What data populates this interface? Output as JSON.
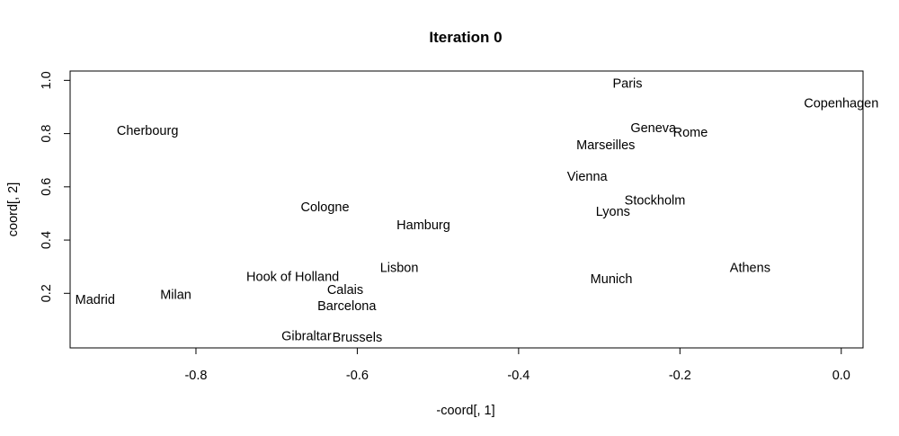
{
  "chart_data": {
    "type": "scatter",
    "title": "Iteration 0",
    "xlabel": "-coord[, 1]",
    "ylabel": "coord[, 2]",
    "xlim": [
      -0.956,
      0.027
    ],
    "ylim": [
      -0.005,
      1.035
    ],
    "xticks": [
      -0.8,
      -0.6,
      -0.4,
      -0.2,
      0.0
    ],
    "xtick_labels": [
      "-0.8",
      "-0.6",
      "-0.4",
      "-0.2",
      "0.0"
    ],
    "yticks": [
      0.2,
      0.4,
      0.6,
      0.8,
      1.0
    ],
    "ytick_labels": [
      "0.2",
      "0.4",
      "0.6",
      "0.8",
      "1.0"
    ],
    "points": [
      {
        "label": "Paris",
        "x": -0.265,
        "y": 0.99
      },
      {
        "label": "Copenhagen",
        "x": 0.0,
        "y": 0.915
      },
      {
        "label": "Cherbourg",
        "x": -0.86,
        "y": 0.812
      },
      {
        "label": "Geneva",
        "x": -0.233,
        "y": 0.823
      },
      {
        "label": "Rome",
        "x": -0.187,
        "y": 0.806
      },
      {
        "label": "Marseilles",
        "x": -0.292,
        "y": 0.758
      },
      {
        "label": "Vienna",
        "x": -0.315,
        "y": 0.64
      },
      {
        "label": "Stockholm",
        "x": -0.231,
        "y": 0.55
      },
      {
        "label": "Lyons",
        "x": -0.283,
        "y": 0.508
      },
      {
        "label": "Cologne",
        "x": -0.64,
        "y": 0.525
      },
      {
        "label": "Hamburg",
        "x": -0.518,
        "y": 0.458
      },
      {
        "label": "Lisbon",
        "x": -0.548,
        "y": 0.298
      },
      {
        "label": "Munich",
        "x": -0.285,
        "y": 0.255
      },
      {
        "label": "Athens",
        "x": -0.113,
        "y": 0.298
      },
      {
        "label": "Hook of Holland",
        "x": -0.68,
        "y": 0.263
      },
      {
        "label": "Madrid",
        "x": -0.925,
        "y": 0.178
      },
      {
        "label": "Milan",
        "x": -0.825,
        "y": 0.196
      },
      {
        "label": "Calais",
        "x": -0.615,
        "y": 0.214
      },
      {
        "label": "Barcelona",
        "x": -0.613,
        "y": 0.153
      },
      {
        "label": "Gibraltar",
        "x": -0.663,
        "y": 0.04
      },
      {
        "label": "Brussels",
        "x": -0.6,
        "y": 0.035
      }
    ]
  }
}
